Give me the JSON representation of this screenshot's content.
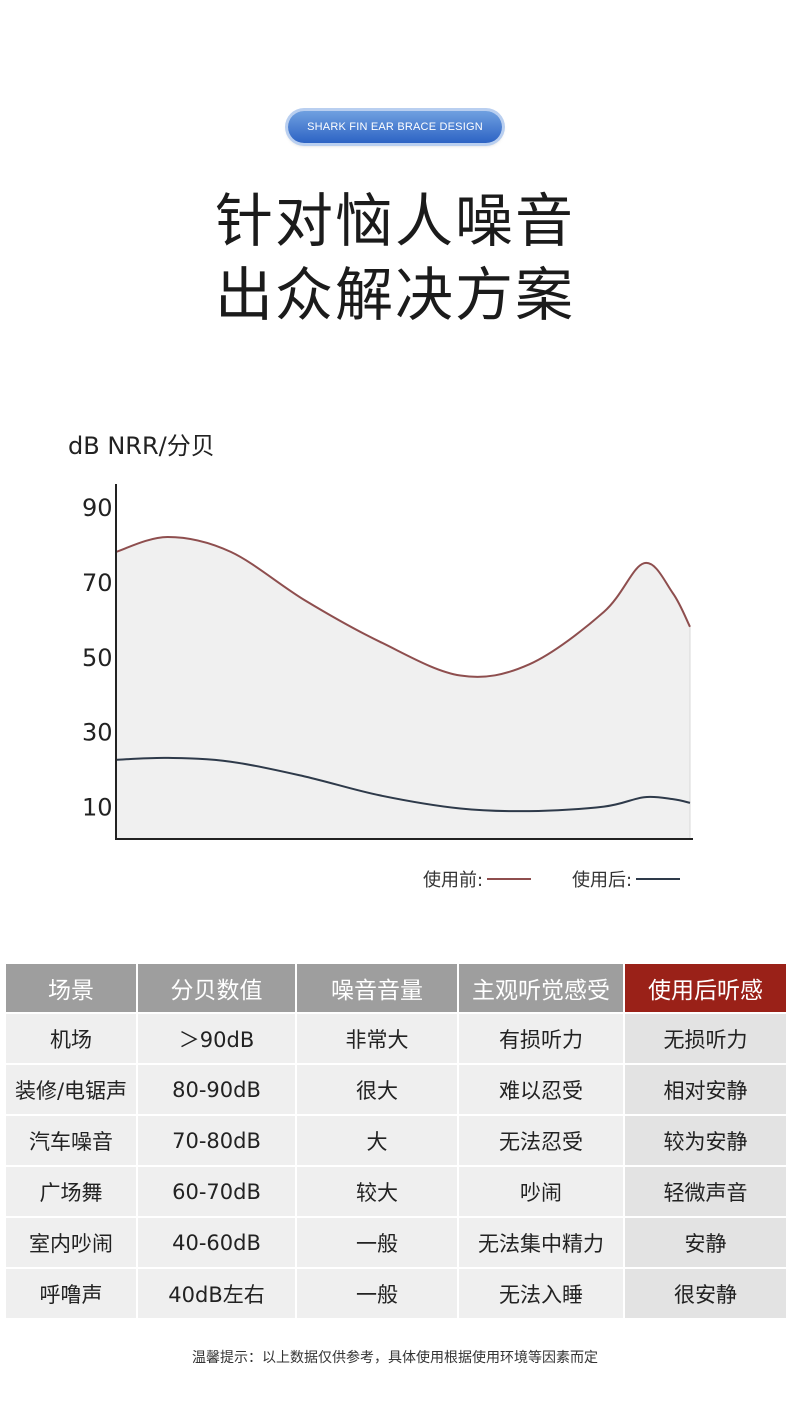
{
  "badge": "SHARK FIN EAR BRACE DESIGN",
  "title_line1": "针对恼人噪音",
  "title_line2": "出众解决方案",
  "chart_data": {
    "type": "area",
    "ylabel": "dB  NRR/分贝",
    "yticks": [
      90,
      70,
      50,
      30,
      10
    ],
    "ylim": [
      0,
      92
    ],
    "x": [
      0,
      0.09,
      0.2,
      0.33,
      0.46,
      0.6,
      0.72,
      0.85,
      0.92,
      0.97,
      1.0
    ],
    "series": [
      {
        "name": "使用前:",
        "color": "#8e4e4e",
        "values": [
          78,
          82,
          78,
          65,
          54,
          45,
          48,
          62,
          75,
          67,
          58
        ]
      },
      {
        "name": "使用后:",
        "color": "#2e3a4a",
        "values": [
          22.5,
          23,
          22,
          18,
          13,
          9.5,
          8.8,
          10,
          12.5,
          12,
          11
        ]
      }
    ],
    "fill": "#f0f0f0",
    "legend": "bottom-right"
  },
  "table": {
    "headers": [
      "场景",
      "分贝数值",
      "噪音音量",
      "主观听觉感受",
      "使用后听感"
    ],
    "rows": [
      [
        "机场",
        "＞90dB",
        "非常大",
        "有损听力",
        "无损听力"
      ],
      [
        "装修/电锯声",
        "80-90dB",
        "很大",
        "难以忍受",
        "相对安静"
      ],
      [
        "汽车噪音",
        "70-80dB",
        "大",
        "无法忍受",
        "较为安静"
      ],
      [
        "广场舞",
        "60-70dB",
        "较大",
        "吵闹",
        "轻微声音"
      ],
      [
        "室内吵闹",
        "40-60dB",
        "一般",
        "无法集中精力",
        "安静"
      ],
      [
        "呼噜声",
        "40dB左右",
        "一般",
        "无法入睡",
        "很安静"
      ]
    ],
    "header_color": "#9e9e9e",
    "highlight_color": "#9a2118"
  },
  "footnote": "温馨提示：以上数据仅供参考，具体使用根据使用环境等因素而定"
}
